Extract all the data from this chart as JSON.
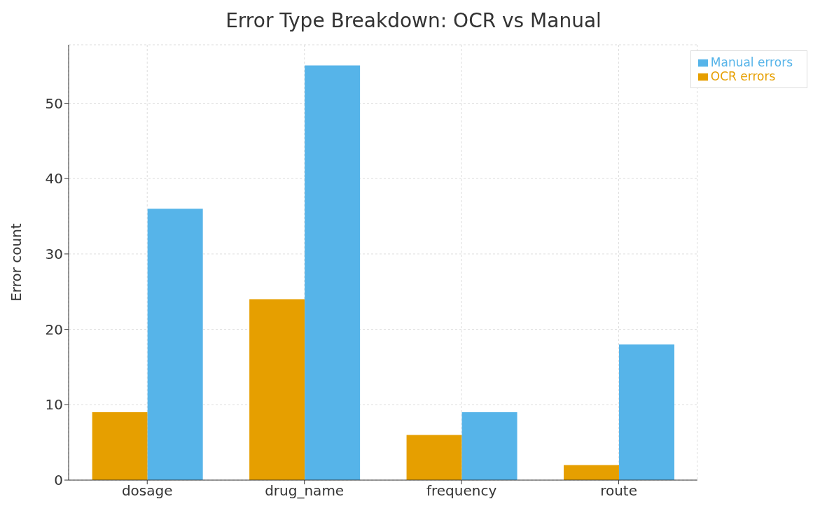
{
  "chart_data": {
    "type": "bar",
    "title": "Error Type Breakdown: OCR vs Manual",
    "ylabel": "Error count",
    "categories": [
      "dosage",
      "drug_name",
      "frequency",
      "route"
    ],
    "series": [
      {
        "name": "OCR errors",
        "color": "#e69f00",
        "values": [
          9,
          24,
          6,
          2
        ]
      },
      {
        "name": "Manual errors",
        "color": "#56b4e9",
        "values": [
          36,
          55,
          9,
          18
        ]
      }
    ],
    "ylim": [
      0,
      57.75
    ],
    "yticks": [
      0,
      10,
      20,
      30,
      40,
      50
    ],
    "grid": true,
    "legend": "top right"
  }
}
